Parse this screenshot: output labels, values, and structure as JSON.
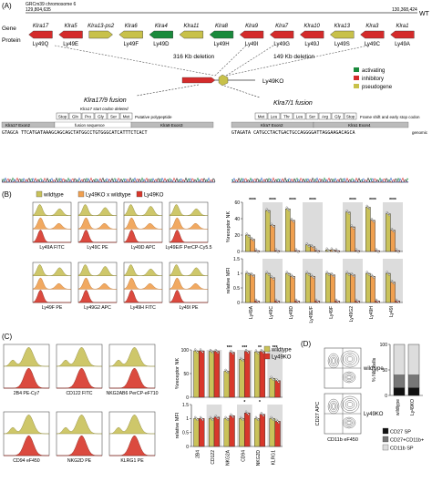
{
  "panel_labels": {
    "A": "(A)",
    "B": "(B)",
    "C": "(C)",
    "D": "(D)"
  },
  "colors": {
    "inhibitory": "#d42b2b",
    "activating": "#1a8a3c",
    "pseudogene": "#c8c14a",
    "wildtype": "#c9c25a",
    "x_wildtype": "#f0a050",
    "ly49ko": "#d8372b"
  },
  "panelA": {
    "chrom_label": "GRCm39 chromosome 6",
    "coord_left": "129,804,635",
    "coord_right": "130,368,424",
    "wt_label": "WT",
    "row_gene": "Gene",
    "row_protein": "Protein",
    "genes": [
      {
        "gene": "Klra17",
        "protein": "Ly49Q",
        "type": "inhibitory",
        "dir": "left"
      },
      {
        "gene": "Klra5",
        "protein": "Ly49E",
        "type": "inhibitory",
        "dir": "left"
      },
      {
        "gene": "Klra13-ps2",
        "protein": "",
        "type": "pseudogene",
        "dir": "right"
      },
      {
        "gene": "Klra6",
        "protein": "Ly49F",
        "type": "pseudogene",
        "dir": "left"
      },
      {
        "gene": "Klra4",
        "protein": "Ly49D",
        "type": "activating",
        "dir": "left"
      },
      {
        "gene": "Klra11",
        "protein": "",
        "type": "pseudogene",
        "dir": "left"
      },
      {
        "gene": "Klra8",
        "protein": "Ly49H",
        "type": "activating",
        "dir": "left"
      },
      {
        "gene": "Klra9",
        "protein": "Ly49I",
        "type": "inhibitory",
        "dir": "left"
      },
      {
        "gene": "Klra7",
        "protein": "Ly49G",
        "type": "inhibitory",
        "dir": "left"
      },
      {
        "gene": "Klra10",
        "protein": "Ly49J",
        "type": "inhibitory",
        "dir": "left"
      },
      {
        "gene": "Klra13",
        "protein": "Ly49S",
        "type": "pseudogene",
        "dir": "left"
      },
      {
        "gene": "Klra3",
        "protein": "Ly49C",
        "type": "inhibitory",
        "dir": "left"
      },
      {
        "gene": "Klra1",
        "protein": "Ly49A",
        "type": "inhibitory",
        "dir": "left"
      }
    ],
    "deletion_1": "316 Kb deletion",
    "deletion_2": "149 Kb deletion",
    "ko_label": "Ly49KO",
    "legend": [
      "activating",
      "inhibitory",
      "pseudogene"
    ],
    "fusion1_title": "Klra17/9 fusion",
    "fusion2_title": "Klra7/1 fusion",
    "fusion1_aa": [
      "Stop",
      "Gln",
      "Pro",
      "Gly",
      "Ser",
      "Met"
    ],
    "fusion1_note": "Putative polypeptide",
    "fusion1_startnote": "Klra17 start codon deleted",
    "fusion1_exons": [
      "Klra17 Exon2",
      "fusion sequence",
      "Klra9 Exon3"
    ],
    "fusion2_aa": [
      "Met",
      "Leu",
      "Thr",
      "Leu",
      "Ser",
      "Arg",
      "Gly",
      "Stop"
    ],
    "fusion2_note": "Frame shift and early stop codon",
    "fusion2_exons": [
      "Klra7 Exon2",
      "Klra1 Exon4"
    ],
    "seq1": "GTAGCA TTCATGATAAAGCAGCAGCTATGGCCTGTGGGCATCATTTCTCACT",
    "seq2": "GTAGATA CATGCCTACTGACTGCCAGGGGATTAGGAAGACAGCA",
    "genomic_label": "genomic"
  },
  "panelB": {
    "legend": [
      "wildtype",
      "Ly49KO x wildtype",
      "Ly49KO"
    ],
    "flow_labels": [
      "Ly49A FITC",
      "Ly49C PE",
      "Ly49D APC",
      "Ly49E/F PerCP-Cy5.5",
      "Ly49F PE",
      "Ly49G2 APC",
      "Ly49H FITC",
      "Ly49I PE"
    ],
    "y_label_top": "%receptor NK",
    "y_label_bottom": "relative MFI",
    "categories": [
      "Ly49A",
      "Ly49C",
      "Ly49D",
      "Ly49E/F",
      "Ly49F",
      "Ly49G2",
      "Ly49H",
      "Ly49I"
    ],
    "sig": "****"
  },
  "panelC": {
    "legend": [
      "wildtype",
      "Ly49KO"
    ],
    "flow_labels": [
      "2B4 PE-Cy7",
      "CD122 FITC",
      "NKG2AB6 PerCP-eF710",
      "CD94 eF450",
      "NKG2D PE",
      "KLRG1 PE"
    ],
    "y_label_top": "%receptor NK",
    "y_label_bottom": "relative MFI",
    "categories": [
      "2B4",
      "CD122",
      "NKG2A",
      "CD94",
      "NKG2D",
      "KLRG1"
    ],
    "sig_top": [
      "***",
      "***",
      "**",
      "***"
    ],
    "sig_bottom": [
      "*",
      "*"
    ]
  },
  "panelD": {
    "row_labels": [
      "wildtype",
      "Ly49KO"
    ],
    "xaxis": "CD11b eF450",
    "yaxis": "CD27 APC",
    "bar_ylabel": "% NK cells",
    "bar_ylim": [
      0,
      100
    ],
    "bar_categories": [
      "wildtype",
      "Ly49KO"
    ],
    "legend": [
      "CD27 SP",
      "CD27+CD11b+",
      "CD11b SP"
    ]
  },
  "chart_data": [
    {
      "type": "bar",
      "title": "",
      "ylabel": "%receptor NK",
      "categories": [
        "Ly49A",
        "Ly49C",
        "Ly49D",
        "Ly49E/F",
        "Ly49F",
        "Ly49G2",
        "Ly49H",
        "Ly49I"
      ],
      "ylim": [
        0,
        60
      ],
      "series": [
        {
          "name": "wildtype",
          "values": [
            20,
            50,
            52,
            8,
            2,
            48,
            54,
            46
          ]
        },
        {
          "name": "Ly49KO x wildtype",
          "values": [
            15,
            32,
            38,
            6,
            2,
            30,
            38,
            26
          ]
        },
        {
          "name": "Ly49KO",
          "values": [
            1,
            1,
            1,
            1,
            1,
            1,
            1,
            1
          ]
        }
      ]
    },
    {
      "type": "bar",
      "title": "",
      "ylabel": "relative MFI",
      "categories": [
        "Ly49A",
        "Ly49C",
        "Ly49D",
        "Ly49E/F",
        "Ly49F",
        "Ly49G2",
        "Ly49H",
        "Ly49I"
      ],
      "ylim": [
        0,
        1.5
      ],
      "series": [
        {
          "name": "wildtype",
          "values": [
            1.0,
            1.0,
            1.0,
            1.0,
            1.0,
            1.0,
            1.0,
            1.0
          ]
        },
        {
          "name": "Ly49KO x wildtype",
          "values": [
            0.95,
            0.85,
            0.9,
            0.9,
            0.95,
            0.95,
            0.9,
            0.7
          ]
        },
        {
          "name": "Ly49KO",
          "values": [
            0.05,
            0.05,
            0.05,
            0.05,
            0.05,
            0.05,
            0.05,
            0.05
          ]
        }
      ]
    },
    {
      "type": "bar",
      "title": "",
      "ylabel": "%receptor NK",
      "categories": [
        "2B4",
        "CD122",
        "NKG2A",
        "CD94",
        "NKG2D",
        "KLRG1"
      ],
      "ylim": [
        0,
        100
      ],
      "series": [
        {
          "name": "wildtype",
          "values": [
            98,
            97,
            55,
            80,
            96,
            40
          ]
        },
        {
          "name": "Ly49KO",
          "values": [
            98,
            97,
            95,
            97,
            97,
            35
          ]
        }
      ]
    },
    {
      "type": "bar",
      "title": "",
      "ylabel": "relative MFI",
      "categories": [
        "2B4",
        "CD122",
        "NKG2A",
        "CD94",
        "NKG2D",
        "KLRG1"
      ],
      "ylim": [
        0,
        1.5
      ],
      "series": [
        {
          "name": "wildtype",
          "values": [
            1.0,
            1.0,
            1.0,
            1.0,
            1.0,
            1.0
          ]
        },
        {
          "name": "Ly49KO",
          "values": [
            1.0,
            1.05,
            1.1,
            1.2,
            1.15,
            0.9
          ]
        }
      ]
    },
    {
      "type": "bar",
      "title": "",
      "ylabel": "% NK cells",
      "categories": [
        "wildtype",
        "Ly49KO"
      ],
      "ylim": [
        0,
        100
      ],
      "series": [
        {
          "name": "CD27 SP",
          "values": [
            15,
            15
          ]
        },
        {
          "name": "CD27+CD11b+",
          "values": [
            25,
            25
          ]
        },
        {
          "name": "CD11b SP",
          "values": [
            60,
            60
          ]
        }
      ]
    }
  ]
}
